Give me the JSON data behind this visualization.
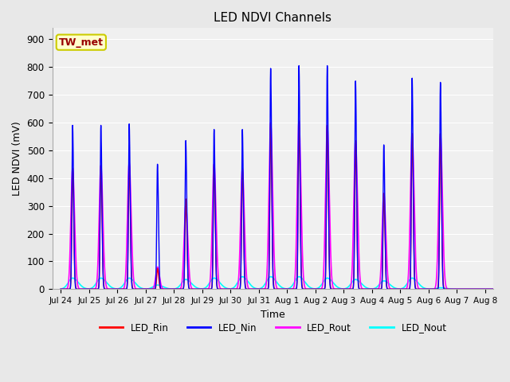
{
  "title": "LED NDVI Channels",
  "xlabel": "Time",
  "ylabel": "LED NDVI (mV)",
  "annotation_text": "TW_met",
  "annotation_bg": "#FFFFCC",
  "annotation_border": "#CCCC00",
  "annotation_fg": "#990000",
  "ylim": [
    0,
    940
  ],
  "yticks": [
    0,
    100,
    200,
    300,
    400,
    500,
    600,
    700,
    800,
    900
  ],
  "xtick_labels": [
    "Jul 24",
    "Jul 25",
    "Jul 26",
    "Jul 27",
    "Jul 28",
    "Jul 29",
    "Jul 30",
    "Jul 31",
    "Aug 1",
    "Aug 2",
    "Aug 3",
    "Aug 4",
    "Aug 5",
    "Aug 6",
    "Aug 7",
    "Aug 8"
  ],
  "bg_color": "#E8E8E8",
  "plot_bg": "#F0F0F0",
  "colors": {
    "LED_Rin": "#FF0000",
    "LED_Nin": "#0000FF",
    "LED_Rout": "#FF00FF",
    "LED_Nout": "#00FFFF"
  },
  "peaks_Nin": [
    590,
    590,
    595,
    450,
    535,
    575,
    575,
    795,
    805,
    805,
    750,
    520,
    760,
    745
  ],
  "peaks_Rin": [
    435,
    445,
    455,
    75,
    325,
    450,
    435,
    595,
    605,
    590,
    535,
    345,
    560,
    560
  ],
  "peaks_Rout": [
    435,
    445,
    455,
    80,
    305,
    450,
    435,
    600,
    608,
    590,
    535,
    345,
    560,
    560
  ],
  "peaks_Nout": [
    40,
    40,
    40,
    15,
    35,
    40,
    45,
    45,
    45,
    40,
    35,
    30,
    40,
    5
  ],
  "peak_days": [
    0.42,
    1.42,
    2.42,
    3.42,
    4.42,
    5.42,
    6.42,
    7.42,
    8.42,
    9.42,
    10.42,
    11.42,
    12.42,
    13.42
  ],
  "rise_Nin": 0.025,
  "fall_Nin": 0.035,
  "rise_Rin": 0.028,
  "fall_Rin": 0.04,
  "rise_Rout": 0.06,
  "fall_Rout": 0.07,
  "rise_Nout": 0.15,
  "fall_Nout": 0.2
}
